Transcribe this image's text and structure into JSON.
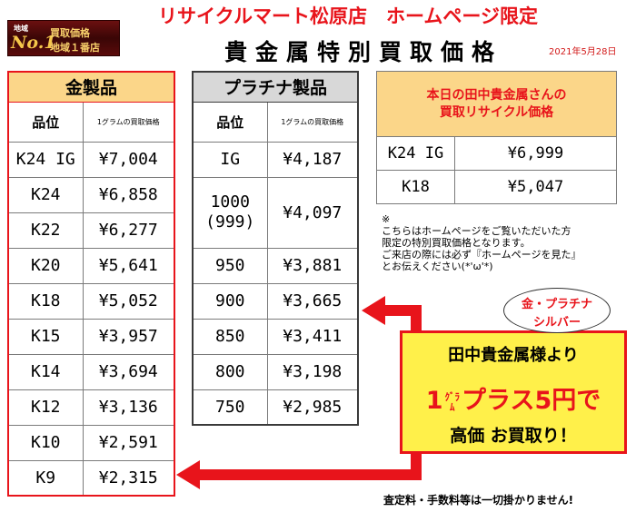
{
  "header": {
    "badge": {
      "small": "地域",
      "no1": "No.1",
      "line1": "買取価格",
      "line2": "地域１番店"
    },
    "top_title": "リサイクルマート松原店　ホームページ限定",
    "main_title": "貴金属特別買取価格",
    "date": "2021年5月28日"
  },
  "gold": {
    "title": "金製品",
    "col_purity": "品位",
    "col_price": "1グラムの買取価格",
    "rows": [
      {
        "purity": "K24 IG",
        "price": "¥7,004"
      },
      {
        "purity": "K24",
        "price": "¥6,858"
      },
      {
        "purity": "K22",
        "price": "¥6,277"
      },
      {
        "purity": "K20",
        "price": "¥5,641"
      },
      {
        "purity": "K18",
        "price": "¥5,052"
      },
      {
        "purity": "K15",
        "price": "¥3,957"
      },
      {
        "purity": "K14",
        "price": "¥3,694"
      },
      {
        "purity": "K12",
        "price": "¥3,136"
      },
      {
        "purity": "K10",
        "price": "¥2,591"
      },
      {
        "purity": "K9",
        "price": "¥2,315"
      }
    ]
  },
  "platinum": {
    "title": "プラチナ製品",
    "col_purity": "品位",
    "col_price": "1グラムの買取価格",
    "rows": [
      {
        "purity": "IG",
        "price": "¥4,187"
      },
      {
        "purity": "1000",
        "purity2": "(999)",
        "price": "¥4,097"
      },
      {
        "purity": "950",
        "price": "¥3,881"
      },
      {
        "purity": "900",
        "price": "¥3,665"
      },
      {
        "purity": "850",
        "price": "¥3,411"
      },
      {
        "purity": "800",
        "price": "¥3,198"
      },
      {
        "purity": "750",
        "price": "¥2,985"
      }
    ]
  },
  "tanaka": {
    "title_line1": "本日の田中貴金属さんの",
    "title_line2": "買取リサイクル価格",
    "rows": [
      {
        "purity": "K24 IG",
        "price": "¥6,999"
      },
      {
        "purity": "K18",
        "price": "¥5,047"
      }
    ]
  },
  "note": {
    "mark": "※",
    "line1": "こちらはホームページをご覧いただいた方",
    "line2": "限定の特別買取価格となります。",
    "line3": "ご来店の際には必ず『ホームページを見た』",
    "line4": "とお伝えください(*'ω'*)"
  },
  "bubble": {
    "line1": "金・プラチナ",
    "line2": "シルバー"
  },
  "callout": {
    "line1": "田中貴金属様より",
    "line2_prefix": "1",
    "line2_unit_top": "ｸﾞﾗ",
    "line2_unit_bottom": "ﾑ",
    "line2_rest": "プラス5円で",
    "line3": "高価 お買取り！"
  },
  "footer": "査定料・手数料等は一切掛かりません!",
  "colors": {
    "accent_red": "#e8141b",
    "gold_header": "#fbd689",
    "platinum_header": "#d8d8d8",
    "callout_bg": "#fff04a"
  }
}
